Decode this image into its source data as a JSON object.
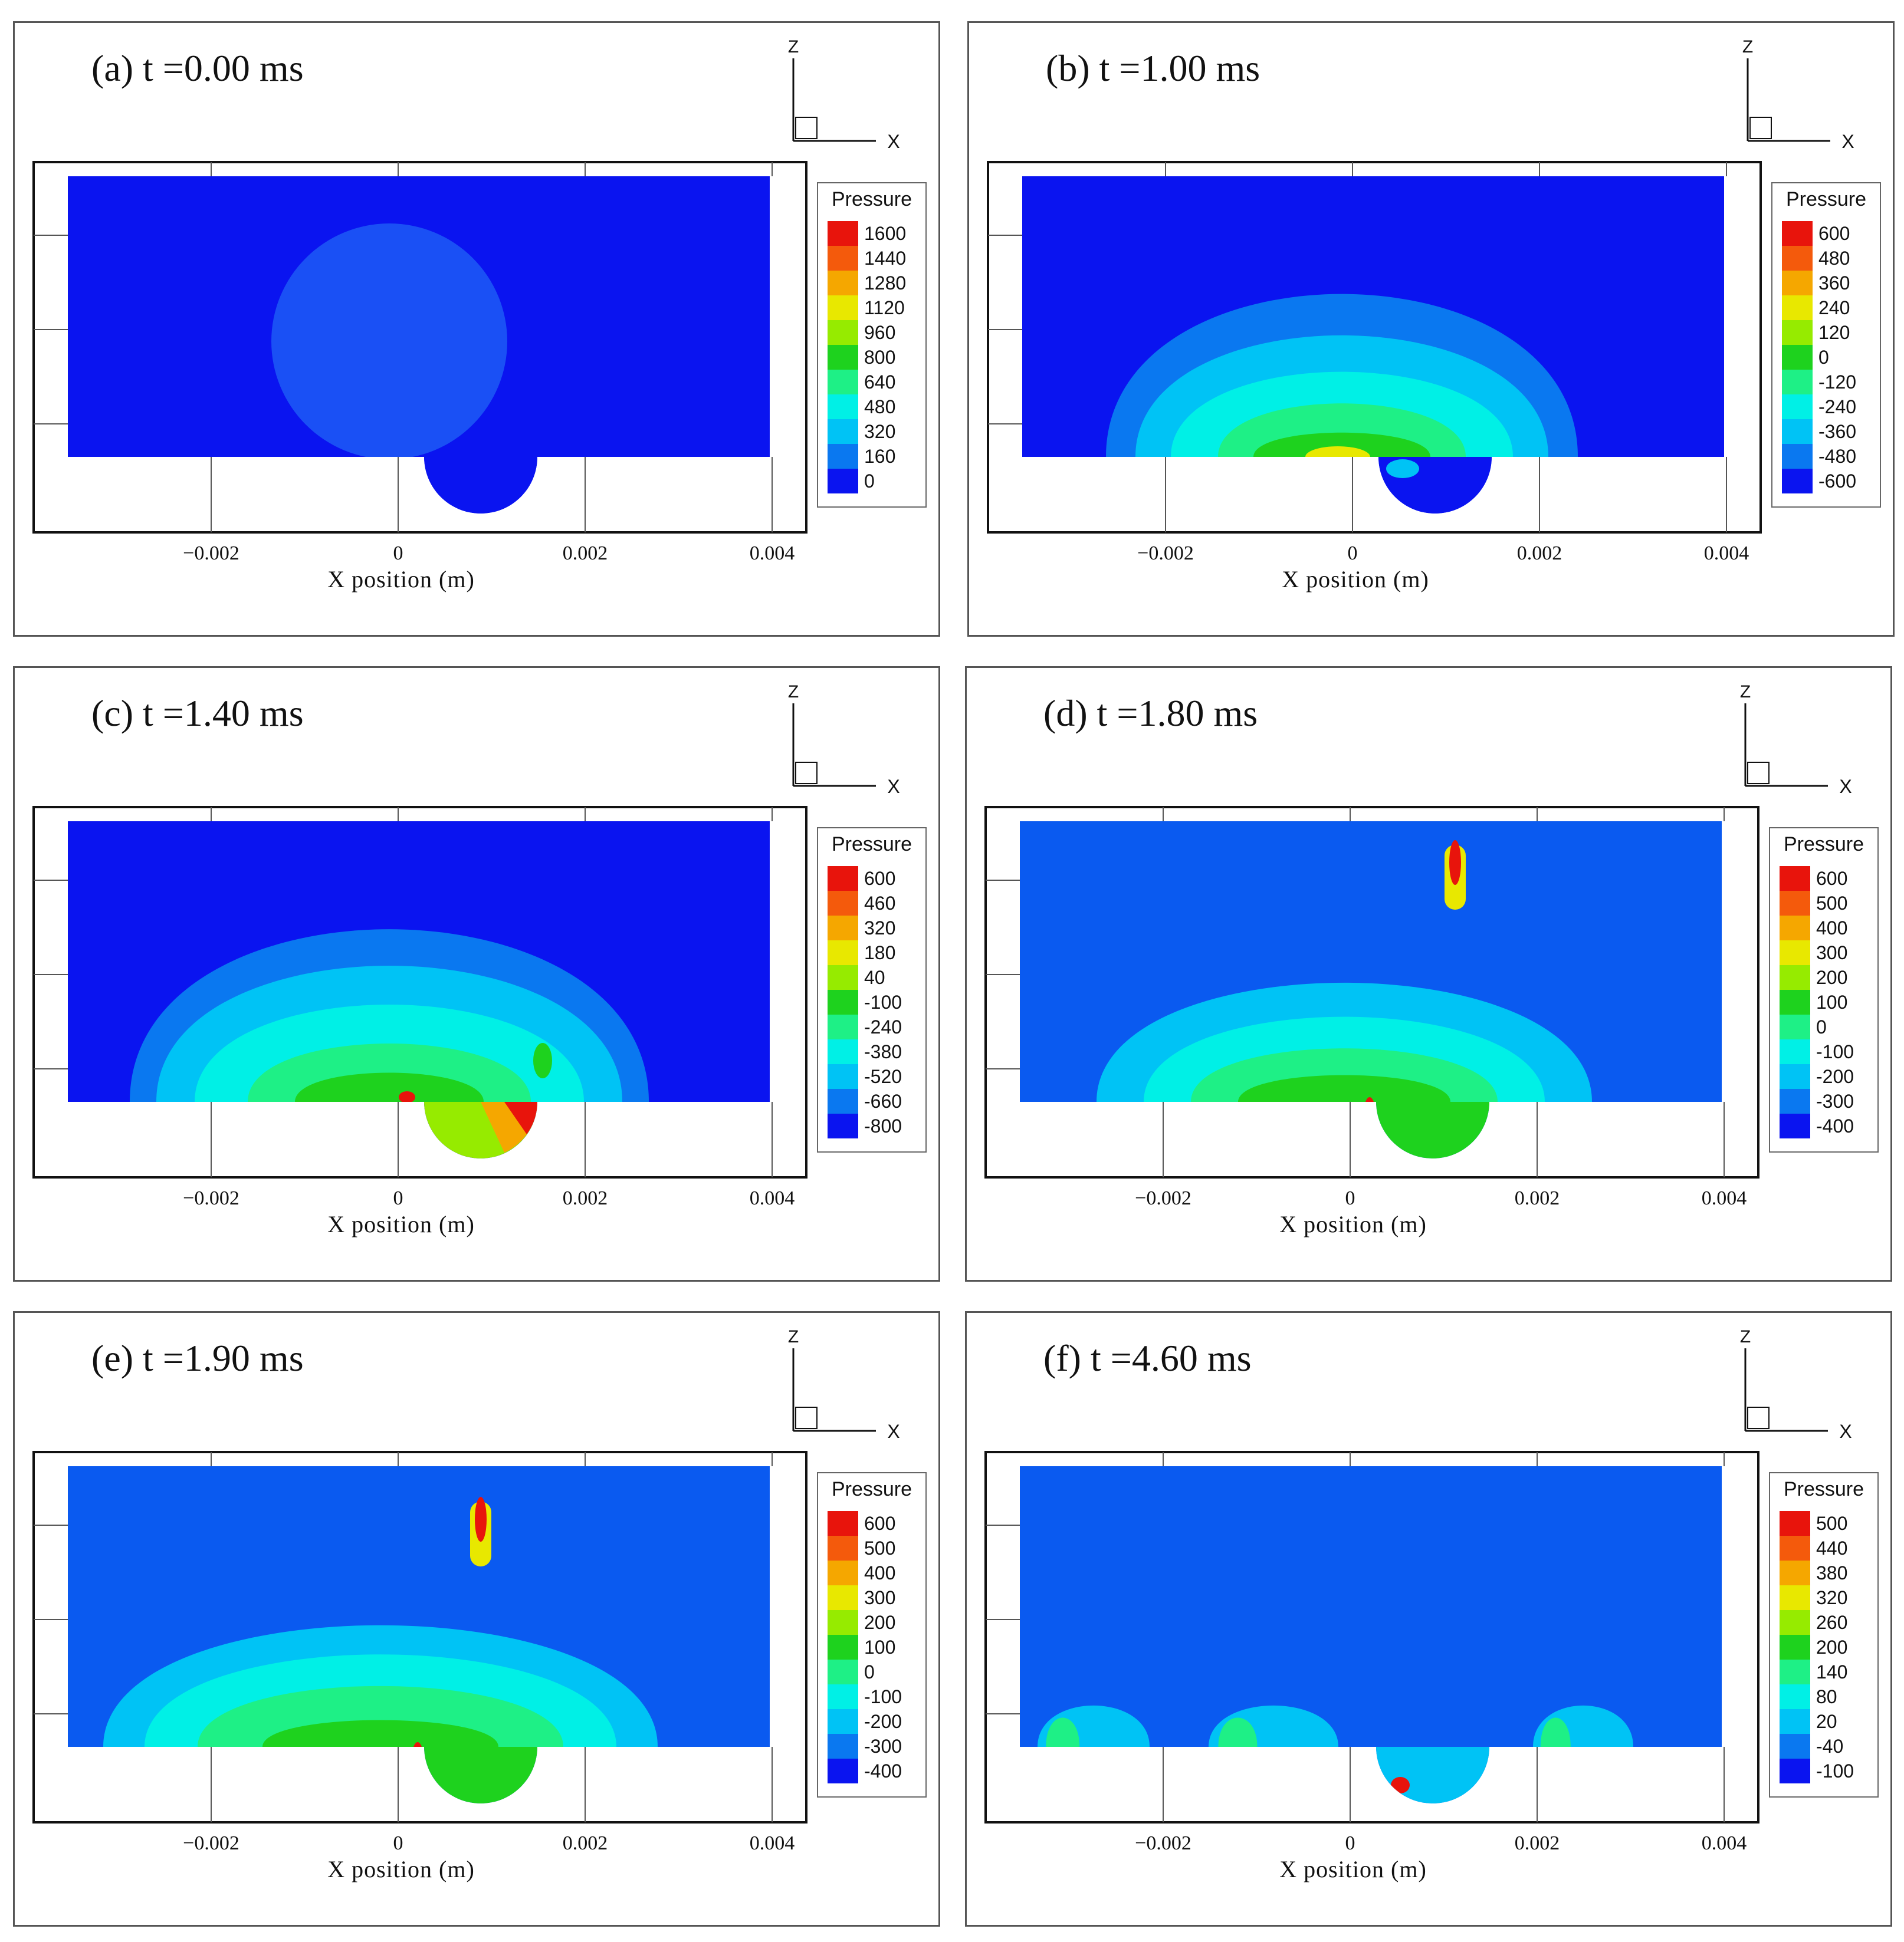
{
  "chart_data": [
    {
      "type": "contour",
      "title": "(a) t =0.00 ms",
      "xlabel": "X position  (m)",
      "xticks": [
        "−0.002",
        "0",
        "0.002",
        "0.004"
      ],
      "axis_labels": {
        "z": "Z",
        "x": "X"
      },
      "legend_title": "Pressure",
      "legend_levels": [
        "1600",
        "1440",
        "1280",
        "1120",
        "960",
        "800",
        "640",
        "480",
        "320",
        "160",
        "0"
      ],
      "state": "initial"
    },
    {
      "type": "contour",
      "title": "(b) t =1.00 ms",
      "xlabel": "X position  (m)",
      "xticks": [
        "−0.002",
        "0",
        "0.002",
        "0.004"
      ],
      "axis_labels": {
        "z": "Z",
        "x": "X"
      },
      "legend_title": "Pressure",
      "legend_levels": [
        "600",
        "480",
        "360",
        "240",
        "120",
        "0",
        "-120",
        "-240",
        "-360",
        "-480",
        "-600"
      ],
      "state": "dome"
    },
    {
      "type": "contour",
      "title": "(c) t =1.40 ms",
      "xlabel": "X position  (m)",
      "xticks": [
        "−0.002",
        "0",
        "0.002",
        "0.004"
      ],
      "axis_labels": {
        "z": "Z",
        "x": "X"
      },
      "legend_title": "Pressure",
      "legend_levels": [
        "600",
        "460",
        "320",
        "180",
        "40",
        "-100",
        "-240",
        "-380",
        "-520",
        "-660",
        "-800"
      ],
      "state": "impact"
    },
    {
      "type": "contour",
      "title": "(d) t =1.80 ms",
      "xlabel": "X position  (m)",
      "xticks": [
        "−0.002",
        "0",
        "0.002",
        "0.004"
      ],
      "axis_labels": {
        "z": "Z",
        "x": "X"
      },
      "legend_title": "Pressure",
      "legend_levels": [
        "600",
        "500",
        "400",
        "300",
        "200",
        "100",
        "0",
        "-100",
        "-200",
        "-300",
        "-400"
      ],
      "state": "jet"
    },
    {
      "type": "contour",
      "title": "(e) t =1.90 ms",
      "xlabel": "X position  (m)",
      "xticks": [
        "−0.002",
        "0",
        "0.002",
        "0.004"
      ],
      "axis_labels": {
        "z": "Z",
        "x": "X"
      },
      "legend_title": "Pressure",
      "legend_levels": [
        "600",
        "500",
        "400",
        "300",
        "200",
        "100",
        "0",
        "-100",
        "-200",
        "-300",
        "-400"
      ],
      "state": "jet2"
    },
    {
      "type": "contour",
      "title": "(f) t =4.60 ms",
      "xlabel": "X position  (m)",
      "xticks": [
        "−0.002",
        "0",
        "0.002",
        "0.004"
      ],
      "axis_labels": {
        "z": "Z",
        "x": "X"
      },
      "legend_title": "Pressure",
      "legend_levels": [
        "500",
        "440",
        "380",
        "320",
        "260",
        "200",
        "140",
        "80",
        "20",
        "-40",
        "-100"
      ],
      "state": "settled"
    }
  ],
  "colors": {
    "scale": [
      "#e8140c",
      "#f45a0c",
      "#f5a700",
      "#e8e800",
      "#96eb00",
      "#1ed21e",
      "#1ef086",
      "#00f0e6",
      "#00c3f5",
      "#0a78f0",
      "#0a14f0"
    ],
    "deep_blue": "#0c1ee6",
    "mid_blue": "#0a5af0"
  }
}
